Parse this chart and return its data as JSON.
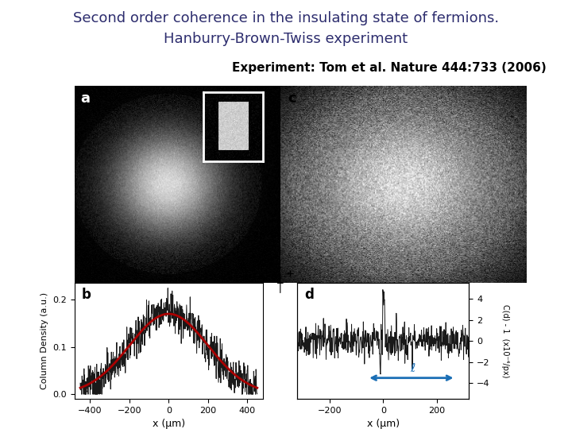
{
  "title_line1": "Second order coherence in the insulating state of fermions.",
  "title_line2": "Hanburry-Brown-Twiss experiment",
  "subtitle": "Experiment: Tom et al. Nature 444:733 (2006)",
  "title_color": "#2d2d6e",
  "subtitle_color": "#000000",
  "bg_color": "#ffffff",
  "title_fontsize": 13,
  "subtitle_fontsize": 11,
  "fig_width": 7.2,
  "fig_height": 5.4,
  "dpi": 100,
  "panel_a_label": "a",
  "panel_b_label": "b",
  "panel_c_label": "c",
  "panel_d_label": "d",
  "panel_b_ylabel": "Column Density (a.u.)",
  "panel_b_xlabel": "x (μm)",
  "panel_d_xlabel": "x (μm)",
  "panel_d_ylabel": "C(d) - 1  (x10⁻⁴/px)",
  "panel_b_yticks": [
    0,
    0.1,
    0.2
  ],
  "panel_b_xticks": [
    -400,
    -200,
    0,
    200,
    400
  ],
  "panel_d_xticks": [
    -200,
    0,
    200
  ],
  "panel_d_yticks": [
    -4,
    -2,
    0,
    2,
    4
  ]
}
